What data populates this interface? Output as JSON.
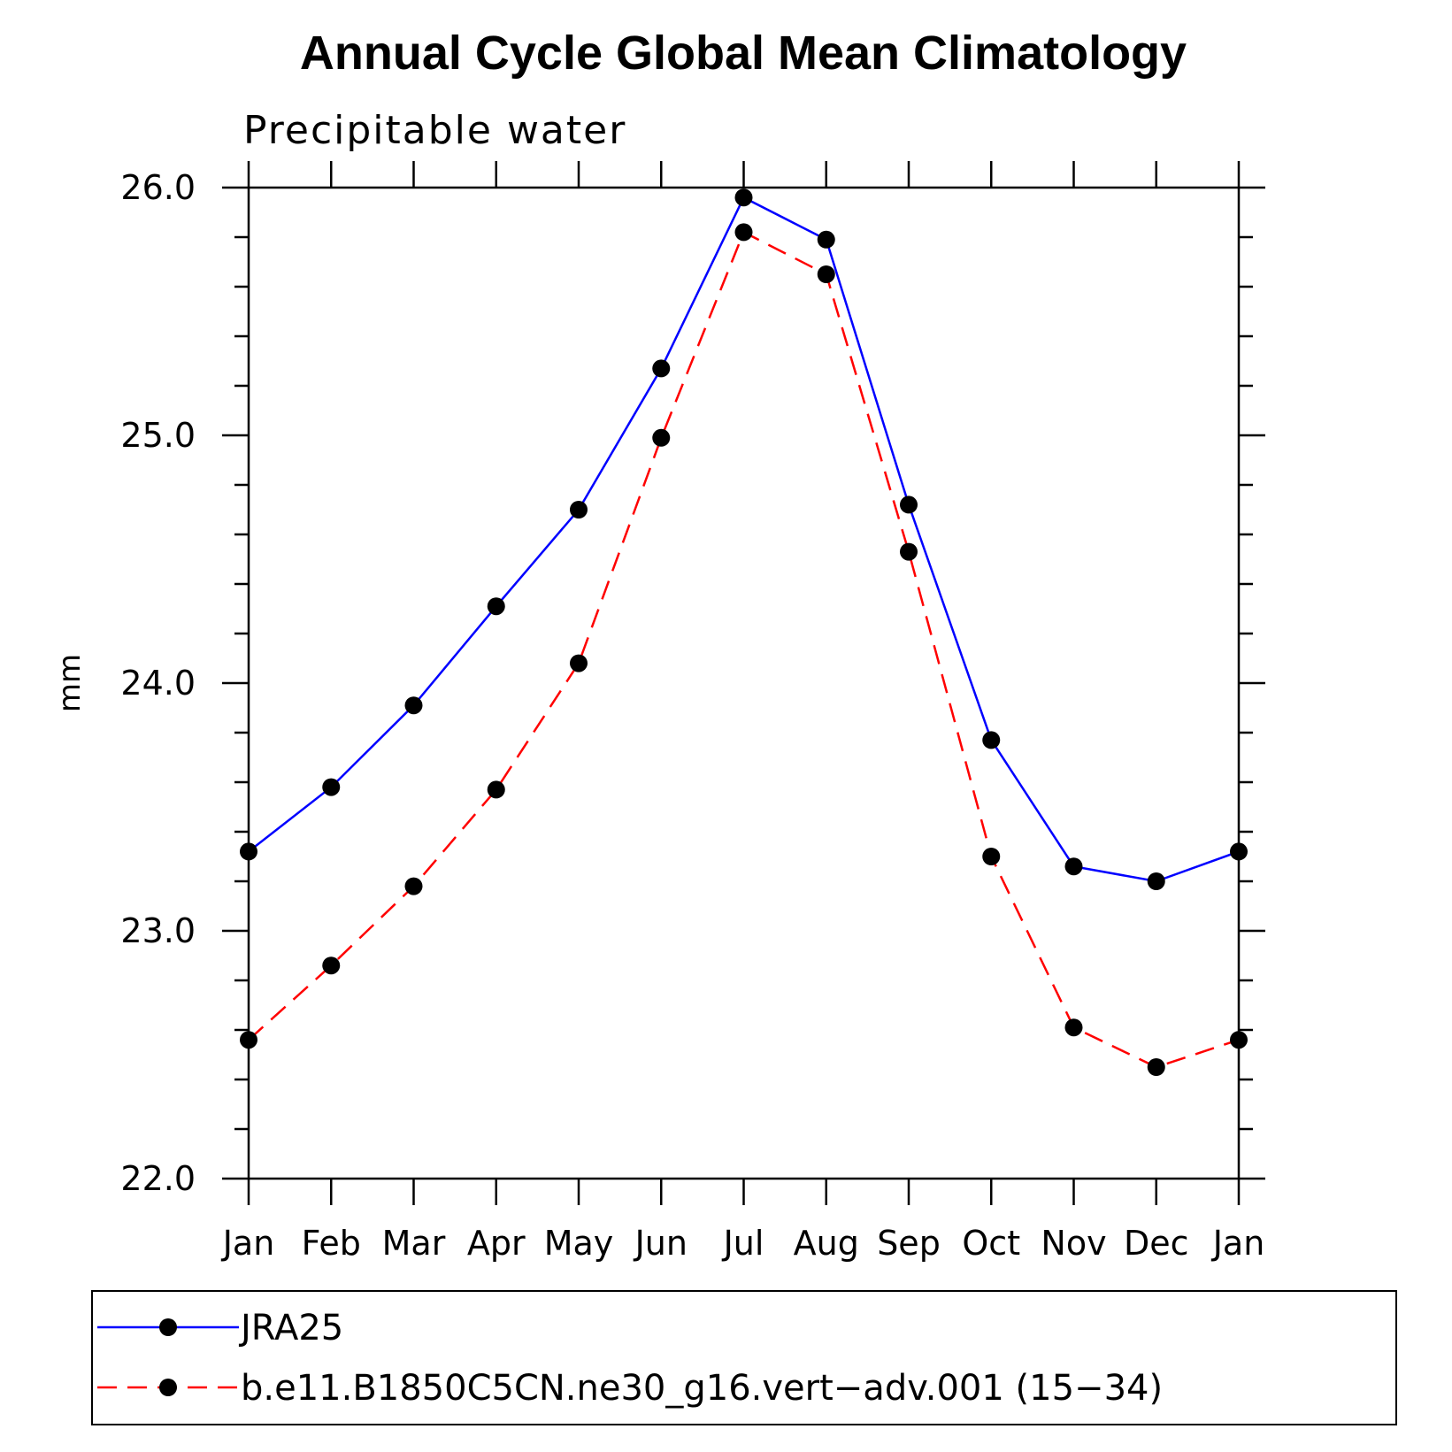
{
  "chart_data": {
    "type": "line",
    "title": "Annual Cycle Global Mean Climatology",
    "subtitle": "Precipitable water",
    "xlabel": "",
    "ylabel": "mm",
    "categories": [
      "Jan",
      "Feb",
      "Mar",
      "Apr",
      "May",
      "Jun",
      "Jul",
      "Aug",
      "Sep",
      "Oct",
      "Nov",
      "Dec",
      "Jan"
    ],
    "ylim": [
      22.0,
      26.0
    ],
    "yticks": [
      22.0,
      23.0,
      24.0,
      25.0,
      26.0
    ],
    "ytick_labels": [
      "22.0",
      "23.0",
      "24.0",
      "25.0",
      "26.0"
    ],
    "yminor_step": 0.2,
    "grid": false,
    "legend_position": "bottom",
    "series": [
      {
        "name": "JRA25",
        "color": "#0000ff",
        "dash": "solid",
        "marker": "circle",
        "values": [
          23.32,
          23.58,
          23.91,
          24.31,
          24.7,
          25.27,
          25.96,
          25.79,
          24.72,
          23.77,
          23.26,
          23.2,
          23.32
        ]
      },
      {
        "name": "b.e11.B1850C5CN.ne30_g16.vert−adv.001 (15−34)",
        "color": "#ff0000",
        "dash": "dashed",
        "marker": "circle",
        "values": [
          22.56,
          22.86,
          23.18,
          23.57,
          24.08,
          24.99,
          25.82,
          25.65,
          24.53,
          23.3,
          22.61,
          22.45,
          22.56
        ]
      }
    ]
  }
}
